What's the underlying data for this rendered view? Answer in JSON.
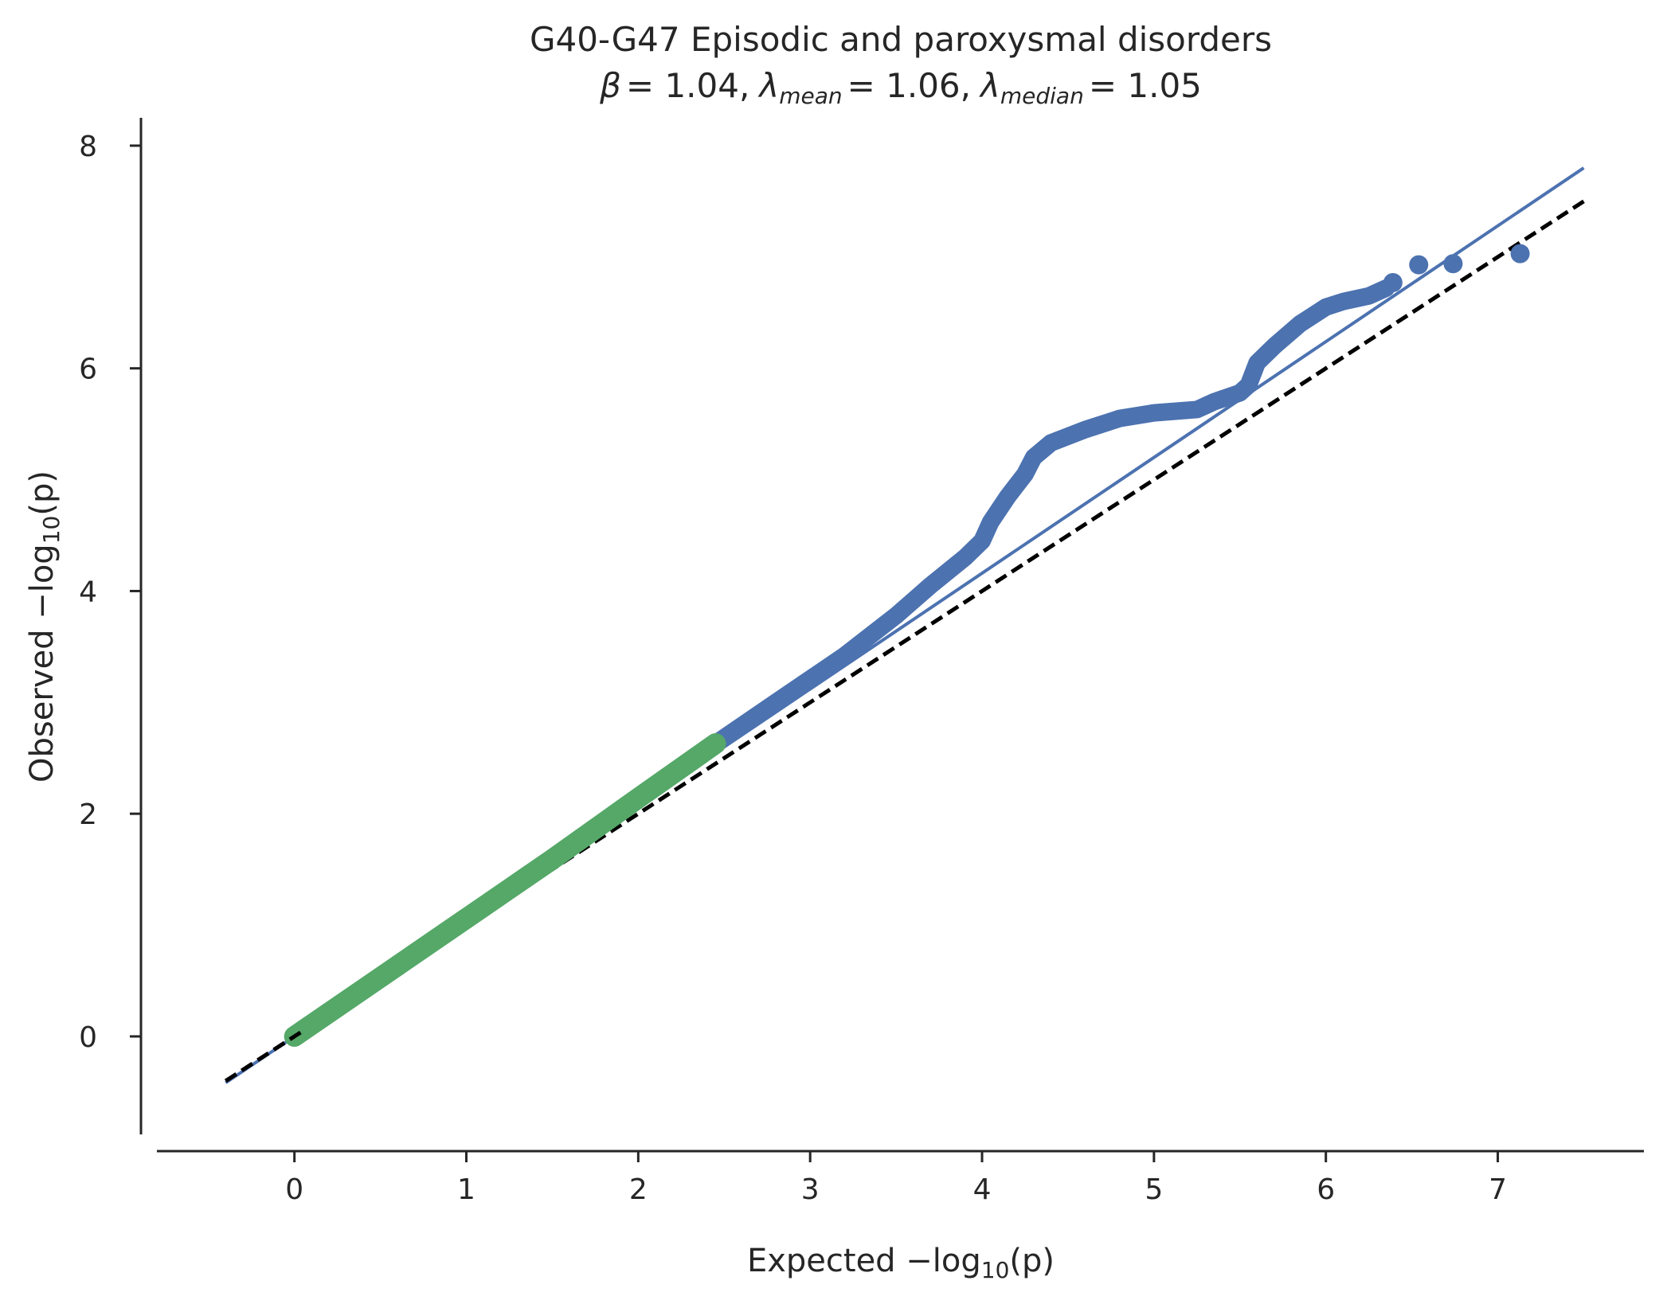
{
  "chart_data": {
    "type": "scatter",
    "title": "G40-G47 Episodic and paroxysmal disorders",
    "subtitle": {
      "beta_symbol": "β",
      "beta_value": "= 1.04,",
      "lambda_symbol": "λ",
      "mean_sub": "mean",
      "mean_value": "= 1.06,",
      "median_sub": "median",
      "median_value": "= 1.05"
    },
    "xlabel": {
      "prefix": "Expected −log",
      "sub": "10",
      "suffix": "(p)"
    },
    "ylabel": {
      "prefix": "Observed −log",
      "sub": "10",
      "suffix": "(p)"
    },
    "xlim": [
      -0.8,
      7.85
    ],
    "ylim": [
      -0.88,
      8.25
    ],
    "xticks": [
      0,
      1,
      2,
      3,
      4,
      5,
      6,
      7
    ],
    "yticks": [
      0,
      2,
      4,
      6,
      8
    ],
    "grid": false,
    "colors": {
      "observed": "#4c72b0",
      "null_region": "#55a868",
      "fit_line": "#4c72b0",
      "diagonal": "#000000",
      "axis": "#262626"
    },
    "fit_line": {
      "slope": 1.04,
      "x": [
        -0.4,
        7.5
      ]
    },
    "diagonal": {
      "x": [
        -0.4,
        7.5
      ]
    },
    "green_segment": [
      [
        0.0,
        0.0
      ],
      [
        0.5,
        0.53
      ],
      [
        1.0,
        1.06
      ],
      [
        1.5,
        1.59
      ],
      [
        2.0,
        2.14
      ],
      [
        2.45,
        2.63
      ]
    ],
    "blue_curve": [
      [
        2.45,
        2.63
      ],
      [
        2.8,
        3.0
      ],
      [
        3.2,
        3.42
      ],
      [
        3.5,
        3.78
      ],
      [
        3.7,
        4.05
      ],
      [
        3.9,
        4.3
      ],
      [
        4.0,
        4.45
      ],
      [
        4.05,
        4.62
      ],
      [
        4.15,
        4.85
      ],
      [
        4.25,
        5.05
      ],
      [
        4.3,
        5.2
      ],
      [
        4.4,
        5.33
      ],
      [
        4.6,
        5.45
      ],
      [
        4.8,
        5.55
      ],
      [
        5.0,
        5.6
      ],
      [
        5.25,
        5.63
      ],
      [
        5.35,
        5.7
      ],
      [
        5.5,
        5.78
      ],
      [
        5.55,
        5.85
      ],
      [
        5.6,
        6.05
      ],
      [
        5.7,
        6.2
      ],
      [
        5.85,
        6.4
      ],
      [
        6.0,
        6.55
      ],
      [
        6.1,
        6.6
      ],
      [
        6.25,
        6.65
      ],
      [
        6.35,
        6.72
      ]
    ],
    "points": [
      {
        "x": 6.39,
        "y": 6.77
      },
      {
        "x": 6.54,
        "y": 6.93
      },
      {
        "x": 6.74,
        "y": 6.94
      },
      {
        "x": 7.13,
        "y": 7.03
      }
    ]
  }
}
